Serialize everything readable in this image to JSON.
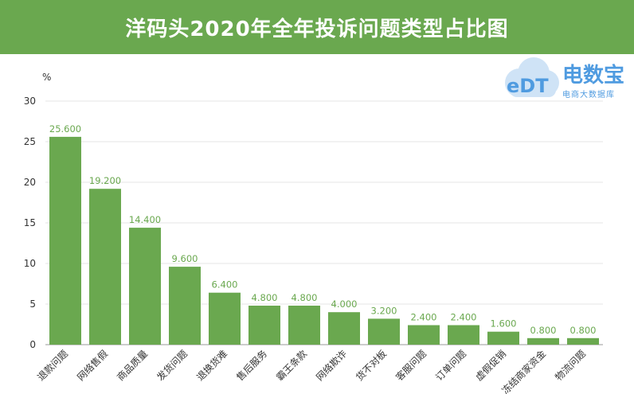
{
  "header": {
    "title": "洋码头2020年全年投诉问题类型占比图"
  },
  "watermark": {
    "brand": "电数宝",
    "tagline": "电商大数据库",
    "logo_text": "eDT"
  },
  "colors": {
    "header_bg": "#6aa84f",
    "bar": "#6aa84f",
    "label": "#6aa84f",
    "watermark": "#4f9be0"
  },
  "chart_data": {
    "type": "bar",
    "title": "洋码头2020年全年投诉问题类型占比图",
    "ylabel": "%",
    "xlabel": "",
    "ylim": [
      0,
      30
    ],
    "yticks": [
      0,
      5,
      10,
      15,
      20,
      25,
      30
    ],
    "grid": true,
    "categories": [
      "退款问题",
      "网络售假",
      "商品质量",
      "发货问题",
      "退换货难",
      "售后服务",
      "霸王条款",
      "网络欺诈",
      "货不对板",
      "客服问题",
      "订单问题",
      "虚假促销",
      "冻结商家资金",
      "物流问题"
    ],
    "values": [
      25.6,
      19.2,
      14.4,
      9.6,
      6.4,
      4.8,
      4.8,
      4.0,
      3.2,
      2.4,
      2.4,
      1.6,
      0.8,
      0.8
    ],
    "data_labels": [
      "25.600",
      "19.200",
      "14.400",
      "9.600",
      "6.400",
      "4.800",
      "4.800",
      "4.000",
      "3.200",
      "2.400",
      "2.400",
      "1.600",
      "0.800",
      "0.800"
    ]
  }
}
